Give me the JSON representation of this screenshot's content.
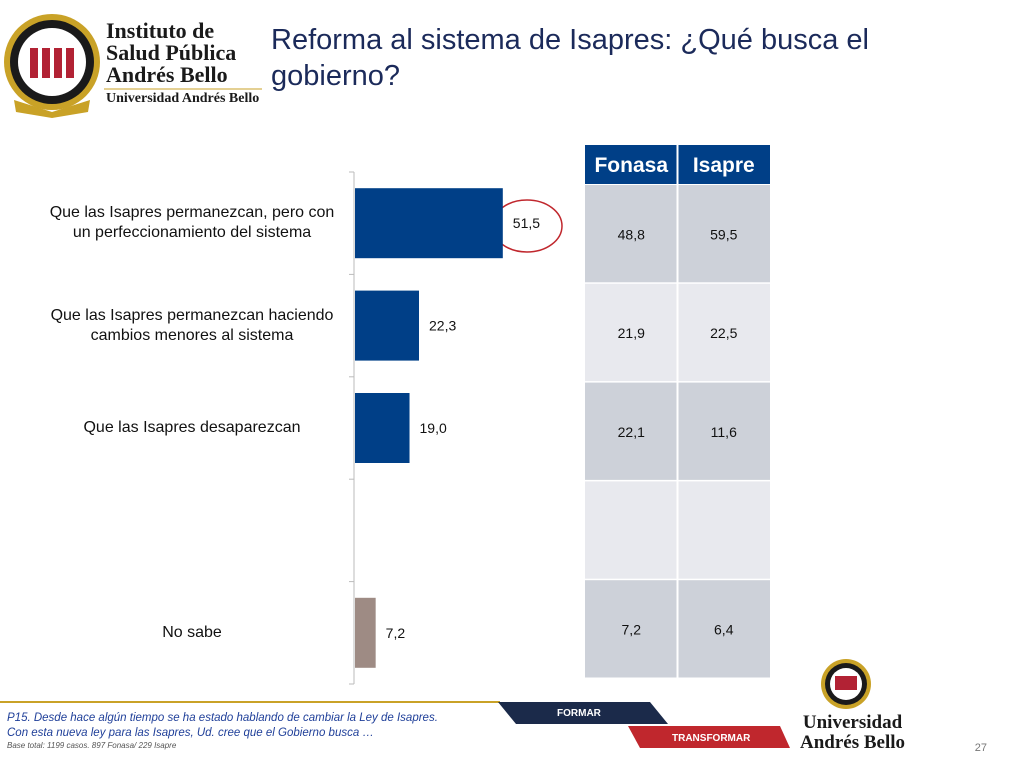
{
  "header": {
    "logo_lines": [
      "Instituto de",
      "Salud Pública",
      "Andrés Bello"
    ],
    "logo_subtitle": "Universidad Andrés Bello",
    "title": "Reforma al sistema de Isapres: ¿Qué busca el gobierno?"
  },
  "chart_data": {
    "type": "hbar",
    "categories": [
      "Que las Isapres permanezcan, pero con un perfeccionamiento del sistema",
      "Que las Isapres permanezcan haciendo cambios menores al sistema",
      "Que las Isapres desaparezcan",
      null,
      "No sabe"
    ],
    "values": [
      51.5,
      22.3,
      19.0,
      null,
      7.2
    ],
    "value_labels": [
      "51,5",
      "22,3",
      "19,0",
      null,
      "7,2"
    ],
    "colors": [
      "#003f87",
      "#003f87",
      "#003f87",
      null,
      "#9e8b84"
    ],
    "xlim": [
      0,
      100
    ]
  },
  "table": {
    "header": [
      "Fonasa",
      "Isapre"
    ],
    "rows": [
      [
        "48,8",
        "59,5"
      ],
      [
        "21,9",
        "22,5"
      ],
      [
        "22,1",
        "11,6"
      ],
      [
        null,
        null
      ],
      [
        "7,2",
        "6,4"
      ]
    ]
  },
  "footer": {
    "question": [
      "P15. Desde hace algún tiempo se ha estado hablando de cambiar la Ley de Isapres.",
      "Con esta nueva ley para las Isapres, Ud. cree que el Gobierno busca …"
    ],
    "base": "Base total: 1199 casos. 897 Fonasa/ 229 Isapre",
    "badge_1": "FORMAR",
    "badge_2": "TRANSFORMAR",
    "logo_lines": [
      "Universidad",
      "Andrés Bello"
    ],
    "page": "27"
  }
}
